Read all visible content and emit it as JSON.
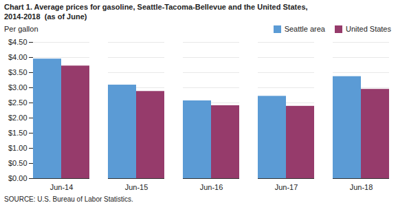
{
  "chart_data": {
    "type": "bar",
    "title": "Chart 1. Average prices for gasoline, Seattle-Tacoma-Bellevue and the United States,\n2014-2018  (as of June)",
    "ylabel": "Per gallon",
    "source": "SOURCE: U.S. Bureau of Labor Statistics.",
    "categories": [
      "Jun-14",
      "Jun-15",
      "Jun-16",
      "Jun-17",
      "Jun-18"
    ],
    "series": [
      {
        "name": "Seattle area",
        "color": "#5B9BD5",
        "values": [
          3.95,
          3.09,
          2.57,
          2.72,
          3.37
        ]
      },
      {
        "name": "United States",
        "color": "#963B6B",
        "values": [
          3.72,
          2.88,
          2.41,
          2.39,
          2.95
        ]
      }
    ],
    "ylim": [
      0,
      4.5
    ],
    "yticks": [
      {
        "value": 0.0,
        "label": "$0.00"
      },
      {
        "value": 0.5,
        "label": "$0.50"
      },
      {
        "value": 1.0,
        "label": "$1.00"
      },
      {
        "value": 1.5,
        "label": "$1.50"
      },
      {
        "value": 2.0,
        "label": "$2.00"
      },
      {
        "value": 2.5,
        "label": "$2.50"
      },
      {
        "value": 3.0,
        "label": "$3.00"
      },
      {
        "value": 3.5,
        "label": "$3.50"
      },
      {
        "value": 4.0,
        "label": "$4.00"
      },
      {
        "value": 4.5,
        "label": "$4.50"
      }
    ],
    "grid": true,
    "legend": "upper right"
  }
}
